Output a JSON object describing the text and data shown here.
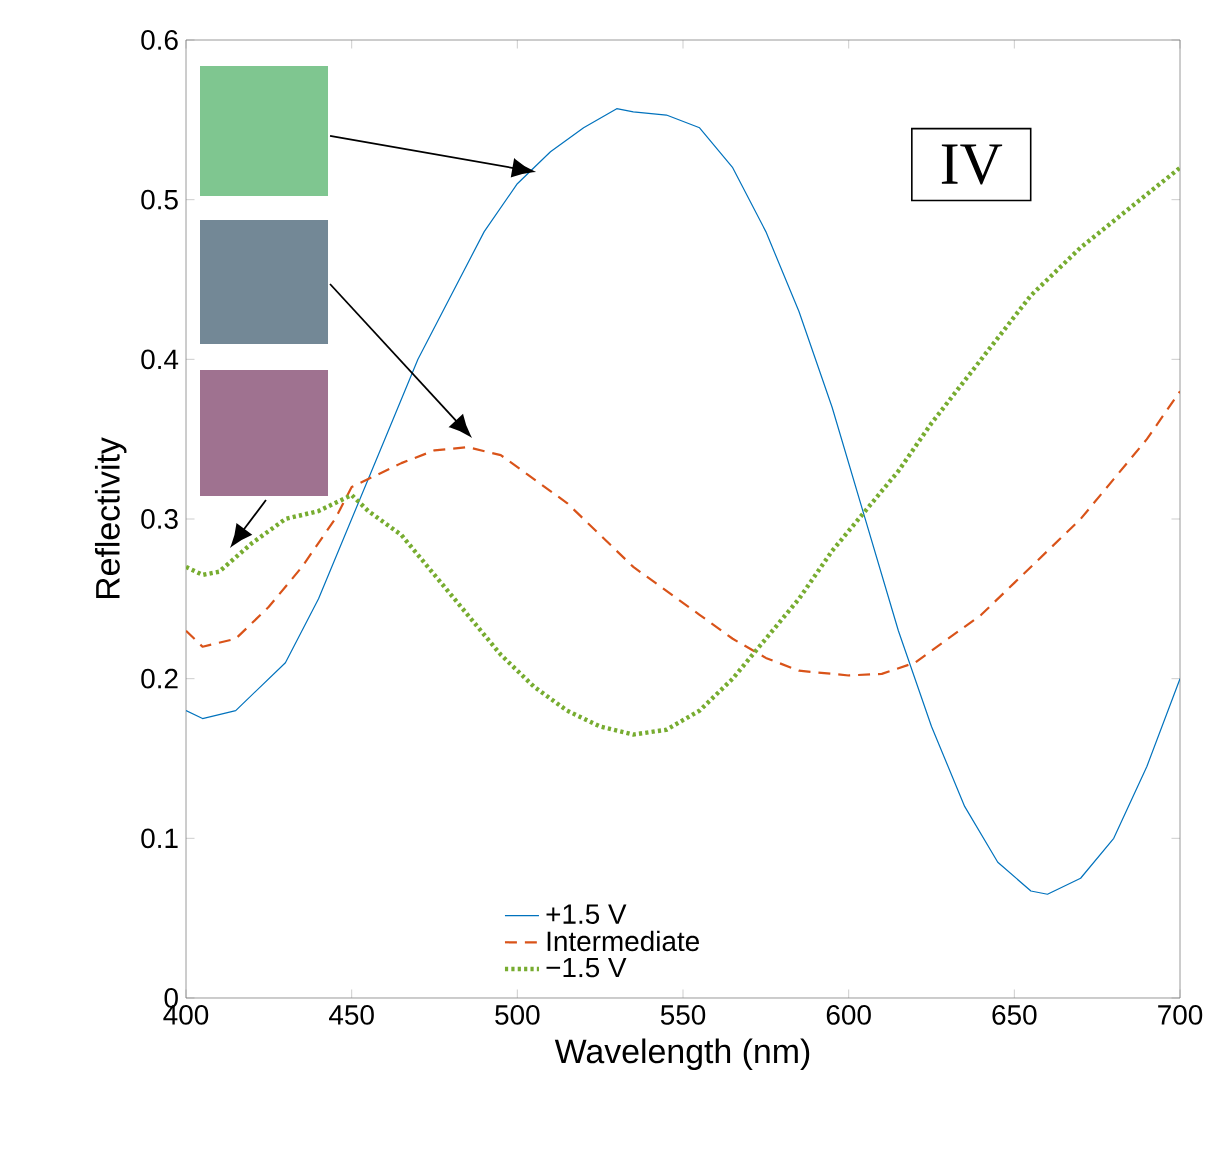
{
  "chart_data": {
    "type": "line",
    "xlabel": "Wavelength  (nm)",
    "ylabel": "Reflectivity",
    "annotations": [
      "IV"
    ],
    "xlim": [
      400,
      700
    ],
    "ylim": [
      0,
      0.6
    ],
    "xticks": [
      400,
      450,
      500,
      550,
      600,
      650,
      700
    ],
    "yticks": [
      0,
      0.1,
      0.2,
      0.3,
      0.4,
      0.5,
      0.6
    ],
    "legend": "bottom",
    "grid": false,
    "series": [
      {
        "name": "+1.5 V",
        "color": "#0072bd",
        "line_style": "solid",
        "x": [
          400,
          405,
          415,
          430,
          440,
          450,
          460,
          470,
          480,
          490,
          500,
          510,
          520,
          530,
          535,
          545,
          555,
          565,
          575,
          585,
          595,
          605,
          615,
          625,
          635,
          645,
          655,
          660,
          670,
          680,
          690,
          700
        ],
        "values": [
          0.18,
          0.175,
          0.18,
          0.21,
          0.25,
          0.3,
          0.35,
          0.4,
          0.44,
          0.48,
          0.51,
          0.53,
          0.545,
          0.557,
          0.555,
          0.553,
          0.545,
          0.52,
          0.48,
          0.43,
          0.37,
          0.3,
          0.23,
          0.17,
          0.12,
          0.085,
          0.067,
          0.065,
          0.075,
          0.1,
          0.145,
          0.2
        ]
      },
      {
        "name": "Intermediate",
        "color": "#d95319",
        "line_style": "dashed",
        "x": [
          400,
          405,
          415,
          425,
          435,
          445,
          450,
          455,
          465,
          475,
          485,
          495,
          505,
          515,
          525,
          535,
          545,
          555,
          565,
          575,
          585,
          600,
          610,
          620,
          630,
          640,
          650,
          660,
          670,
          680,
          690,
          700
        ],
        "values": [
          0.23,
          0.22,
          0.225,
          0.245,
          0.27,
          0.3,
          0.32,
          0.325,
          0.335,
          0.343,
          0.345,
          0.34,
          0.325,
          0.31,
          0.29,
          0.27,
          0.255,
          0.24,
          0.225,
          0.213,
          0.205,
          0.202,
          0.203,
          0.21,
          0.225,
          0.24,
          0.26,
          0.28,
          0.3,
          0.325,
          0.35,
          0.38
        ]
      },
      {
        "name": "−1.5 V",
        "color": "#77ac30",
        "line_style": "dotted",
        "x": [
          400,
          405,
          410,
          420,
          430,
          440,
          450,
          455,
          465,
          475,
          485,
          495,
          505,
          515,
          525,
          535,
          545,
          555,
          565,
          575,
          585,
          595,
          605,
          615,
          625,
          640,
          655,
          670,
          685,
          700
        ],
        "values": [
          0.27,
          0.265,
          0.267,
          0.285,
          0.3,
          0.305,
          0.315,
          0.305,
          0.29,
          0.265,
          0.24,
          0.215,
          0.195,
          0.18,
          0.17,
          0.165,
          0.168,
          0.18,
          0.2,
          0.225,
          0.25,
          0.28,
          0.305,
          0.33,
          0.36,
          0.4,
          0.44,
          0.47,
          0.495,
          0.52
        ]
      }
    ]
  }
}
